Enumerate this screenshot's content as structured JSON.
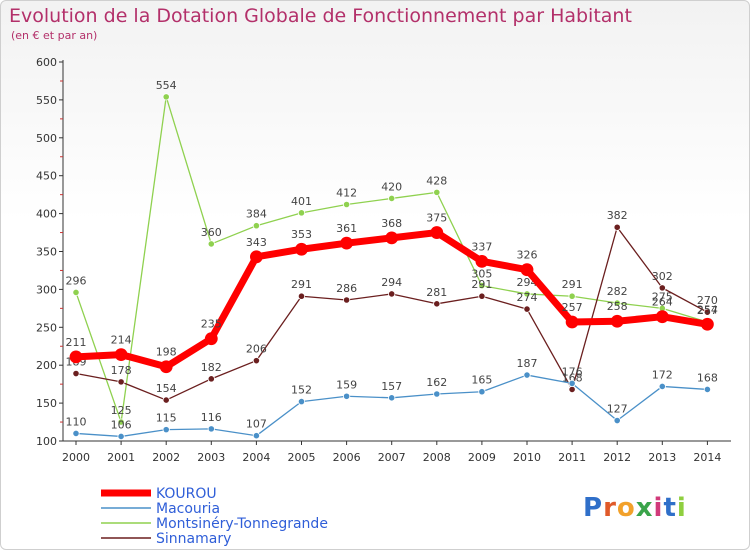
{
  "title": "Evolution de la Dotation Globale de Fonctionnement par Habitant",
  "subtitle": "(en € et par an)",
  "logo": "Proxiti",
  "colors": {
    "title": "#b3306a",
    "kourou": "#ff0000",
    "macouria": "#4a90c8",
    "montsinery": "#8fd14f",
    "sinnamary": "#6b1f1f",
    "legend_text": "#2f5ed8"
  },
  "chart_data": {
    "type": "line",
    "title": "Evolution de la Dotation Globale de Fonctionnement par Habitant",
    "subtitle": "(en € et par an)",
    "xlabel": "",
    "ylabel": "",
    "x": [
      "2000",
      "2001",
      "2002",
      "2003",
      "2004",
      "2005",
      "2006",
      "2007",
      "2008",
      "2009",
      "2010",
      "2011",
      "2012",
      "2013",
      "2014"
    ],
    "ylim": [
      100,
      600
    ],
    "yticks": [
      100,
      150,
      200,
      250,
      300,
      350,
      400,
      450,
      500,
      550,
      600
    ],
    "grid": false,
    "legend_position": "bottom-left",
    "series": [
      {
        "name": "Montsinéry-Tonnegrande",
        "key": "montsinery",
        "values": [
          296,
          125,
          554,
          360,
          384,
          401,
          412,
          420,
          428,
          305,
          294,
          291,
          282,
          275,
          257
        ]
      },
      {
        "name": "Sinnamary",
        "key": "sinnamary",
        "values": [
          189,
          178,
          154,
          182,
          206,
          291,
          286,
          294,
          281,
          291,
          274,
          168,
          382,
          302,
          270
        ]
      },
      {
        "name": "Macouria",
        "key": "macouria",
        "values": [
          110,
          106,
          115,
          116,
          107,
          152,
          159,
          157,
          162,
          165,
          187,
          176,
          127,
          172,
          168
        ]
      },
      {
        "name": "KOUROU",
        "key": "kourou",
        "values": [
          211,
          214,
          198,
          235,
          343,
          353,
          361,
          368,
          375,
          337,
          326,
          257,
          258,
          264,
          254
        ]
      }
    ],
    "legend": [
      "KOUROU",
      "Macouria",
      "Montsinéry-Tonnegrande",
      "Sinnamary"
    ]
  }
}
